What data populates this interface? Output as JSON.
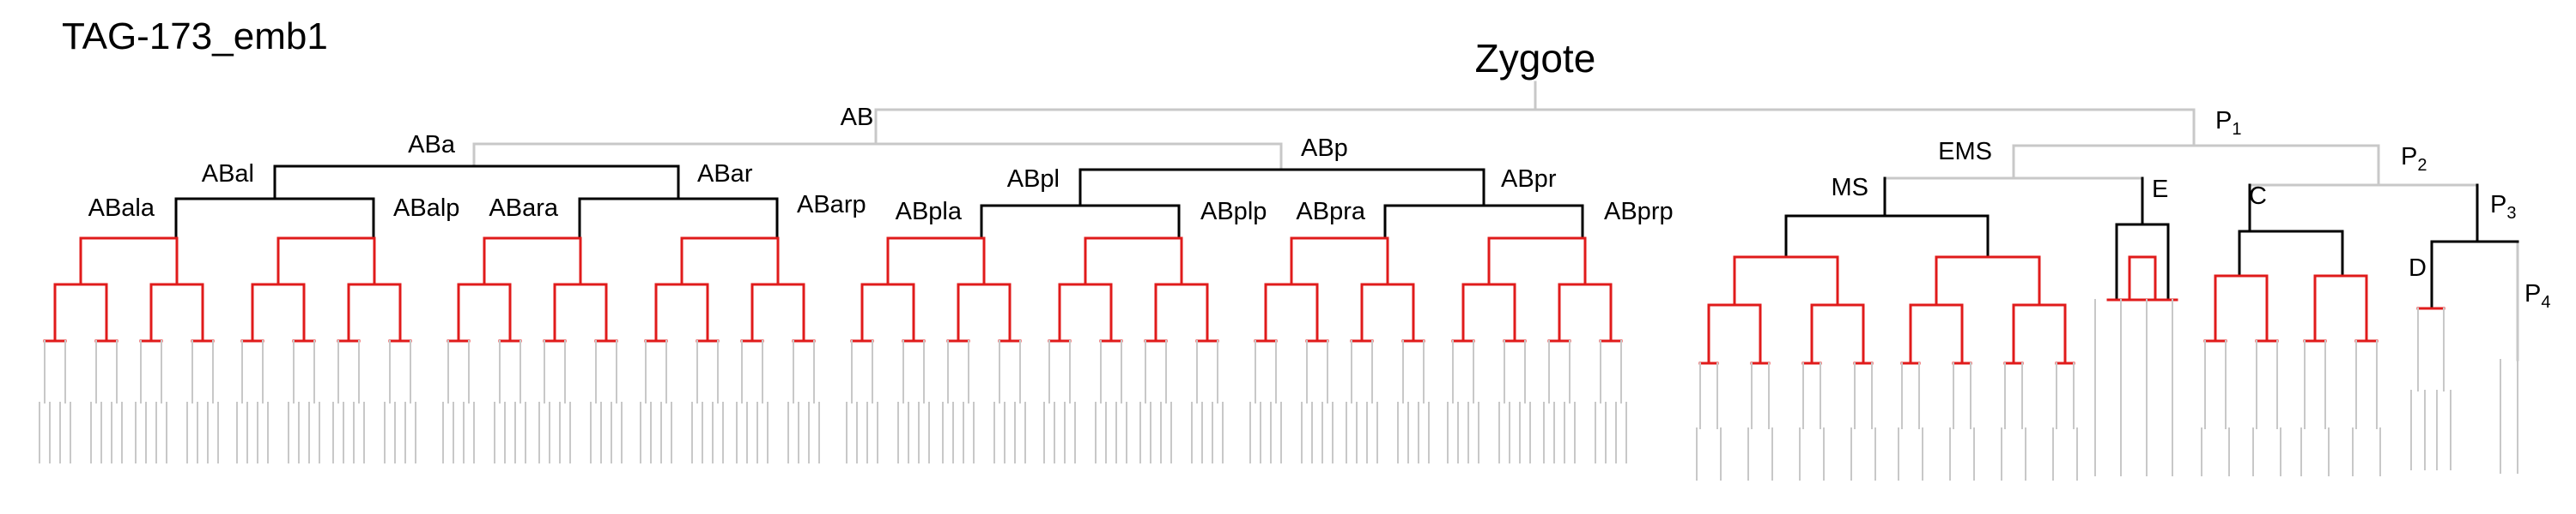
{
  "title": "TAG-173_emb1",
  "root_label": "Zygote",
  "colors": {
    "black": "#000000",
    "red": "#e01b1b",
    "gray": "#c8c8c8"
  },
  "labels": {
    "AB": "AB",
    "P1": "P",
    "P1_sub": "1",
    "ABa": "ABa",
    "ABp": "ABp",
    "EMS": "EMS",
    "P2": "P",
    "P2_sub": "2",
    "ABal": "ABal",
    "ABar": "ABar",
    "ABpl": "ABpl",
    "ABpr": "ABpr",
    "MS": "MS",
    "E": "E",
    "C": "C",
    "P3": "P",
    "P3_sub": "3",
    "ABala": "ABala",
    "ABalp": "ABalp",
    "ABara": "ABara",
    "ABarp": "ABarp",
    "ABpla": "ABpla",
    "ABplp": "ABplp",
    "ABpra": "ABpra",
    "ABprp": "ABprp",
    "D": "D",
    "P4": "P",
    "P4_sub": "4"
  }
}
